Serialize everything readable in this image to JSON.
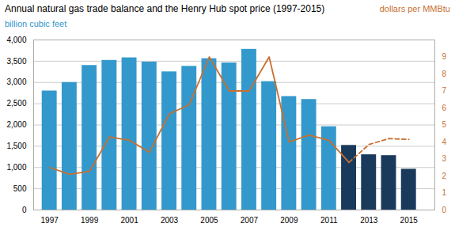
{
  "chart_data": {
    "type": "bar",
    "title": "Annual natural gas trade balance and the Henry Hub spot price (1997-2015)",
    "ylabel": "billion  cubic feet",
    "y2label": "dollars per MMBtu",
    "x": [
      1997,
      1998,
      1999,
      2000,
      2001,
      2002,
      2003,
      2004,
      2005,
      2006,
      2007,
      2008,
      2009,
      2010,
      2011,
      2012,
      2013,
      2014,
      2015
    ],
    "xlim": [
      1996.2,
      2016.3
    ],
    "xticks": [
      1997,
      1999,
      2001,
      2003,
      2005,
      2007,
      2009,
      2011,
      2013,
      2015
    ],
    "ylim": [
      0,
      4000
    ],
    "yticks": [
      0,
      500,
      {
        "value": 1000,
        "label": "1,000"
      },
      {
        "value": 1500,
        "label": "1,500"
      },
      {
        "value": 2000,
        "label": "2,000"
      },
      {
        "value": 2500,
        "label": "2,500"
      },
      {
        "value": 3000,
        "label": "3,000"
      },
      {
        "value": 3500,
        "label": "3,500"
      },
      {
        "value": 4000,
        "label": "4,000"
      }
    ],
    "y2lim": [
      0,
      10
    ],
    "y2ticks": [
      0,
      1,
      2,
      3,
      4,
      5,
      6,
      7,
      8,
      9
    ],
    "grid": true,
    "series": [
      {
        "type": "bar",
        "colors": [
          "#3399cc",
          "#3399cc",
          "#3399cc",
          "#3399cc",
          "#3399cc",
          "#3399cc",
          "#3399cc",
          "#3399cc",
          "#3399cc",
          "#3399cc",
          "#3399cc",
          "#3399cc",
          "#3399cc",
          "#3399cc",
          "#3399cc",
          "#1a3a5c",
          "#1a3a5c",
          "#1a3a5c",
          "#1a3a5c"
        ],
        "values": [
          2800,
          3000,
          3400,
          3520,
          3580,
          3480,
          3250,
          3380,
          3560,
          3460,
          3780,
          3020,
          2670,
          2600,
          1960,
          1520,
          1300,
          1280,
          960
        ]
      },
      {
        "type": "line",
        "axis": "y2",
        "color": "#c87030",
        "line_style": "solid",
        "x": [
          1997,
          1998,
          1999,
          2000,
          2001,
          2002,
          2003,
          2004,
          2005,
          2006,
          2007,
          2008,
          2009,
          2010,
          2011,
          2012
        ],
        "values": [
          2.5,
          2.1,
          2.27,
          4.3,
          4.1,
          3.4,
          5.65,
          6.2,
          9.0,
          7.0,
          7.0,
          9.0,
          4.0,
          4.4,
          4.1,
          2.8
        ]
      },
      {
        "type": "line",
        "axis": "y2",
        "color": "#c87030",
        "line_style": "dashed",
        "x": [
          2012,
          2013,
          2014,
          2015
        ],
        "values": [
          2.8,
          3.85,
          4.2,
          4.15
        ]
      }
    ]
  }
}
